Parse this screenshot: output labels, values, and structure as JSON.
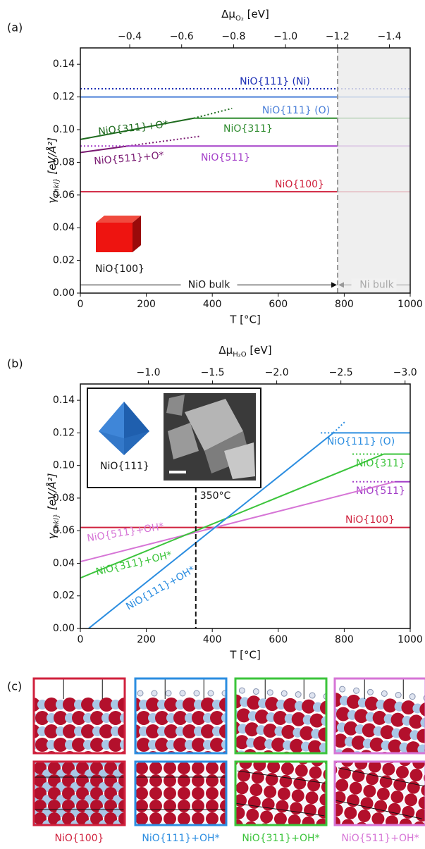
{
  "chart_data": [
    {
      "type": "line",
      "panel_label": "(a)",
      "xlabel": "T [°C]",
      "ylabel": [
        "γ",
        "{hkl}",
        " [eV/Å²]"
      ],
      "x2label": [
        "Δμ",
        "O₂",
        " [eV]"
      ],
      "xlim": [
        0,
        1000
      ],
      "xticks": [
        0,
        200,
        400,
        600,
        800,
        1000
      ],
      "ylim": [
        0,
        0.15
      ],
      "yticks": [
        {
          "value": 0,
          "label": "0.00"
        },
        {
          "value": 0.02,
          "label": "0.02"
        },
        {
          "value": 0.04,
          "label": "0.04"
        },
        {
          "value": 0.06,
          "label": "0.06"
        },
        {
          "value": 0.08,
          "label": "0.08"
        },
        {
          "value": 0.1,
          "label": "0.10"
        },
        {
          "value": 0.12,
          "label": "0.12"
        },
        {
          "value": 0.14,
          "label": "0.14"
        }
      ],
      "x2lim": [
        -0.21,
        -1.48
      ],
      "x2ticks": [
        {
          "value": -0.4,
          "label": "−0.4"
        },
        {
          "value": -0.6,
          "label": "−0.6"
        },
        {
          "value": -0.8,
          "label": "−0.8"
        },
        {
          "value": -1.0,
          "label": "−1.0"
        },
        {
          "value": -1.2,
          "label": "−1.2"
        },
        {
          "value": -1.4,
          "label": "−1.4"
        }
      ],
      "series": [
        {
          "name": "NiO{111} (Ni)",
          "color": "#1a2db5",
          "dash": "dotted",
          "x": [
            0,
            1000
          ],
          "values": [
            0.125,
            0.125
          ]
        },
        {
          "name": "NiO{111} (O)",
          "color": "#4a7fd8",
          "x": [
            0,
            1000
          ],
          "values": [
            0.12,
            0.12
          ]
        },
        {
          "name": "NiO{311}+O*",
          "color": "#1e6b1e",
          "x": [
            0,
            344
          ],
          "values": [
            0.094,
            0.107
          ],
          "extension": {
            "x": [
              344,
              460
            ],
            "values": [
              0.107,
              0.113
            ]
          }
        },
        {
          "name": "NiO{311}",
          "color": "#2e8b2e",
          "x": [
            344,
            1000
          ],
          "values": [
            0.107,
            0.107
          ]
        },
        {
          "name": "NiO{511}+O*",
          "color": "#7a1a72",
          "x": [
            0,
            144
          ],
          "values": [
            0.086,
            0.09
          ],
          "extension": {
            "x": [
              144,
              365
            ],
            "values": [
              0.09,
              0.096
            ]
          }
        },
        {
          "name": "NiO{511}",
          "color": "#a33ec8",
          "x": [
            144,
            1000
          ],
          "values": [
            0.09,
            0.09
          ],
          "extension": {
            "x": [
              0,
              144
            ],
            "values": [
              0.09,
              0.09
            ]
          }
        },
        {
          "name": "NiO{100}",
          "color": "#d0213d",
          "x": [
            0,
            1000
          ],
          "values": [
            0.062,
            0.062
          ]
        }
      ],
      "vline": {
        "x": 780
      },
      "regions": [
        "NiO bulk",
        "Ni bulk"
      ],
      "region_y": 0.005,
      "inset_label": "NiO{100}"
    },
    {
      "type": "line",
      "panel_label": "(b)",
      "xlabel": "T [°C]",
      "ylabel": [
        "γ",
        "{hkl}",
        " [eV/Å²]"
      ],
      "x2label": [
        "Δμ",
        "H₂O",
        " [eV]"
      ],
      "xlim": [
        0,
        1000
      ],
      "xticks": [
        0,
        200,
        400,
        600,
        800,
        1000
      ],
      "ylim": [
        0,
        0.15
      ],
      "yticks": [
        {
          "value": 0,
          "label": "0.00"
        },
        {
          "value": 0.02,
          "label": "0.02"
        },
        {
          "value": 0.04,
          "label": "0.04"
        },
        {
          "value": 0.06,
          "label": "0.06"
        },
        {
          "value": 0.08,
          "label": "0.08"
        },
        {
          "value": 0.1,
          "label": "0.10"
        },
        {
          "value": 0.12,
          "label": "0.12"
        },
        {
          "value": 0.14,
          "label": "0.14"
        }
      ],
      "x2lim": [
        -0.47,
        -3.04
      ],
      "x2ticks": [
        {
          "value": -1.0,
          "label": "−1.0"
        },
        {
          "value": -1.5,
          "label": "−1.5"
        },
        {
          "value": -2.0,
          "label": "−2.0"
        },
        {
          "value": -2.5,
          "label": "−2.5"
        },
        {
          "value": -3.0,
          "label": "−3.0"
        }
      ],
      "series": [
        {
          "name": "NiO{111} (O)",
          "color": "#2b8de0",
          "x": [
            767,
            1000
          ],
          "values": [
            0.12,
            0.12
          ],
          "extension": {
            "x": [
              729,
              767
            ],
            "values": [
              0.12,
              0.12
            ]
          }
        },
        {
          "name": "NiO{311}",
          "color": "#3bc43b",
          "x": [
            920,
            1000
          ],
          "values": [
            0.107,
            0.107
          ],
          "extension": {
            "x": [
              825,
              920
            ],
            "values": [
              0.107,
              0.107
            ]
          }
        },
        {
          "name": "NiO{511}",
          "color": "#a33ec8",
          "x": [
            953,
            1000
          ],
          "values": [
            0.09,
            0.09
          ],
          "extension": {
            "x": [
              825,
              953
            ],
            "values": [
              0.09,
              0.09
            ]
          }
        },
        {
          "name": "NiO{100}",
          "color": "#d0213d",
          "x": [
            0,
            1000
          ],
          "values": [
            0.062,
            0.062
          ]
        },
        {
          "name": "NiO{511}+OH*",
          "color": "#d675d6",
          "x": [
            0,
            953
          ],
          "values": [
            0.041,
            0.09
          ]
        },
        {
          "name": "NiO{311}+OH*",
          "color": "#3bc43b",
          "x": [
            0,
            920
          ],
          "values": [
            0.031,
            0.107
          ]
        },
        {
          "name": "NiO{111}+OH*",
          "color": "#2b8de0",
          "x": [
            25,
            767
          ],
          "values": [
            0,
            0.12
          ],
          "extension": {
            "x": [
              767,
              803
            ],
            "values": [
              0.12,
              0.127
            ]
          }
        }
      ],
      "vline": {
        "x": 350,
        "label": "350°C"
      },
      "inset_label": "NiO{111}"
    }
  ],
  "panel_c": {
    "label": "(c)",
    "captions": [
      "NiO{100}",
      "NiO{111}+OH*",
      "NiO{311}+OH*",
      "NiO{511}+OH*"
    ],
    "colors": [
      "#d0213d",
      "#2b8de0",
      "#3bc43b",
      "#d675d6"
    ]
  }
}
